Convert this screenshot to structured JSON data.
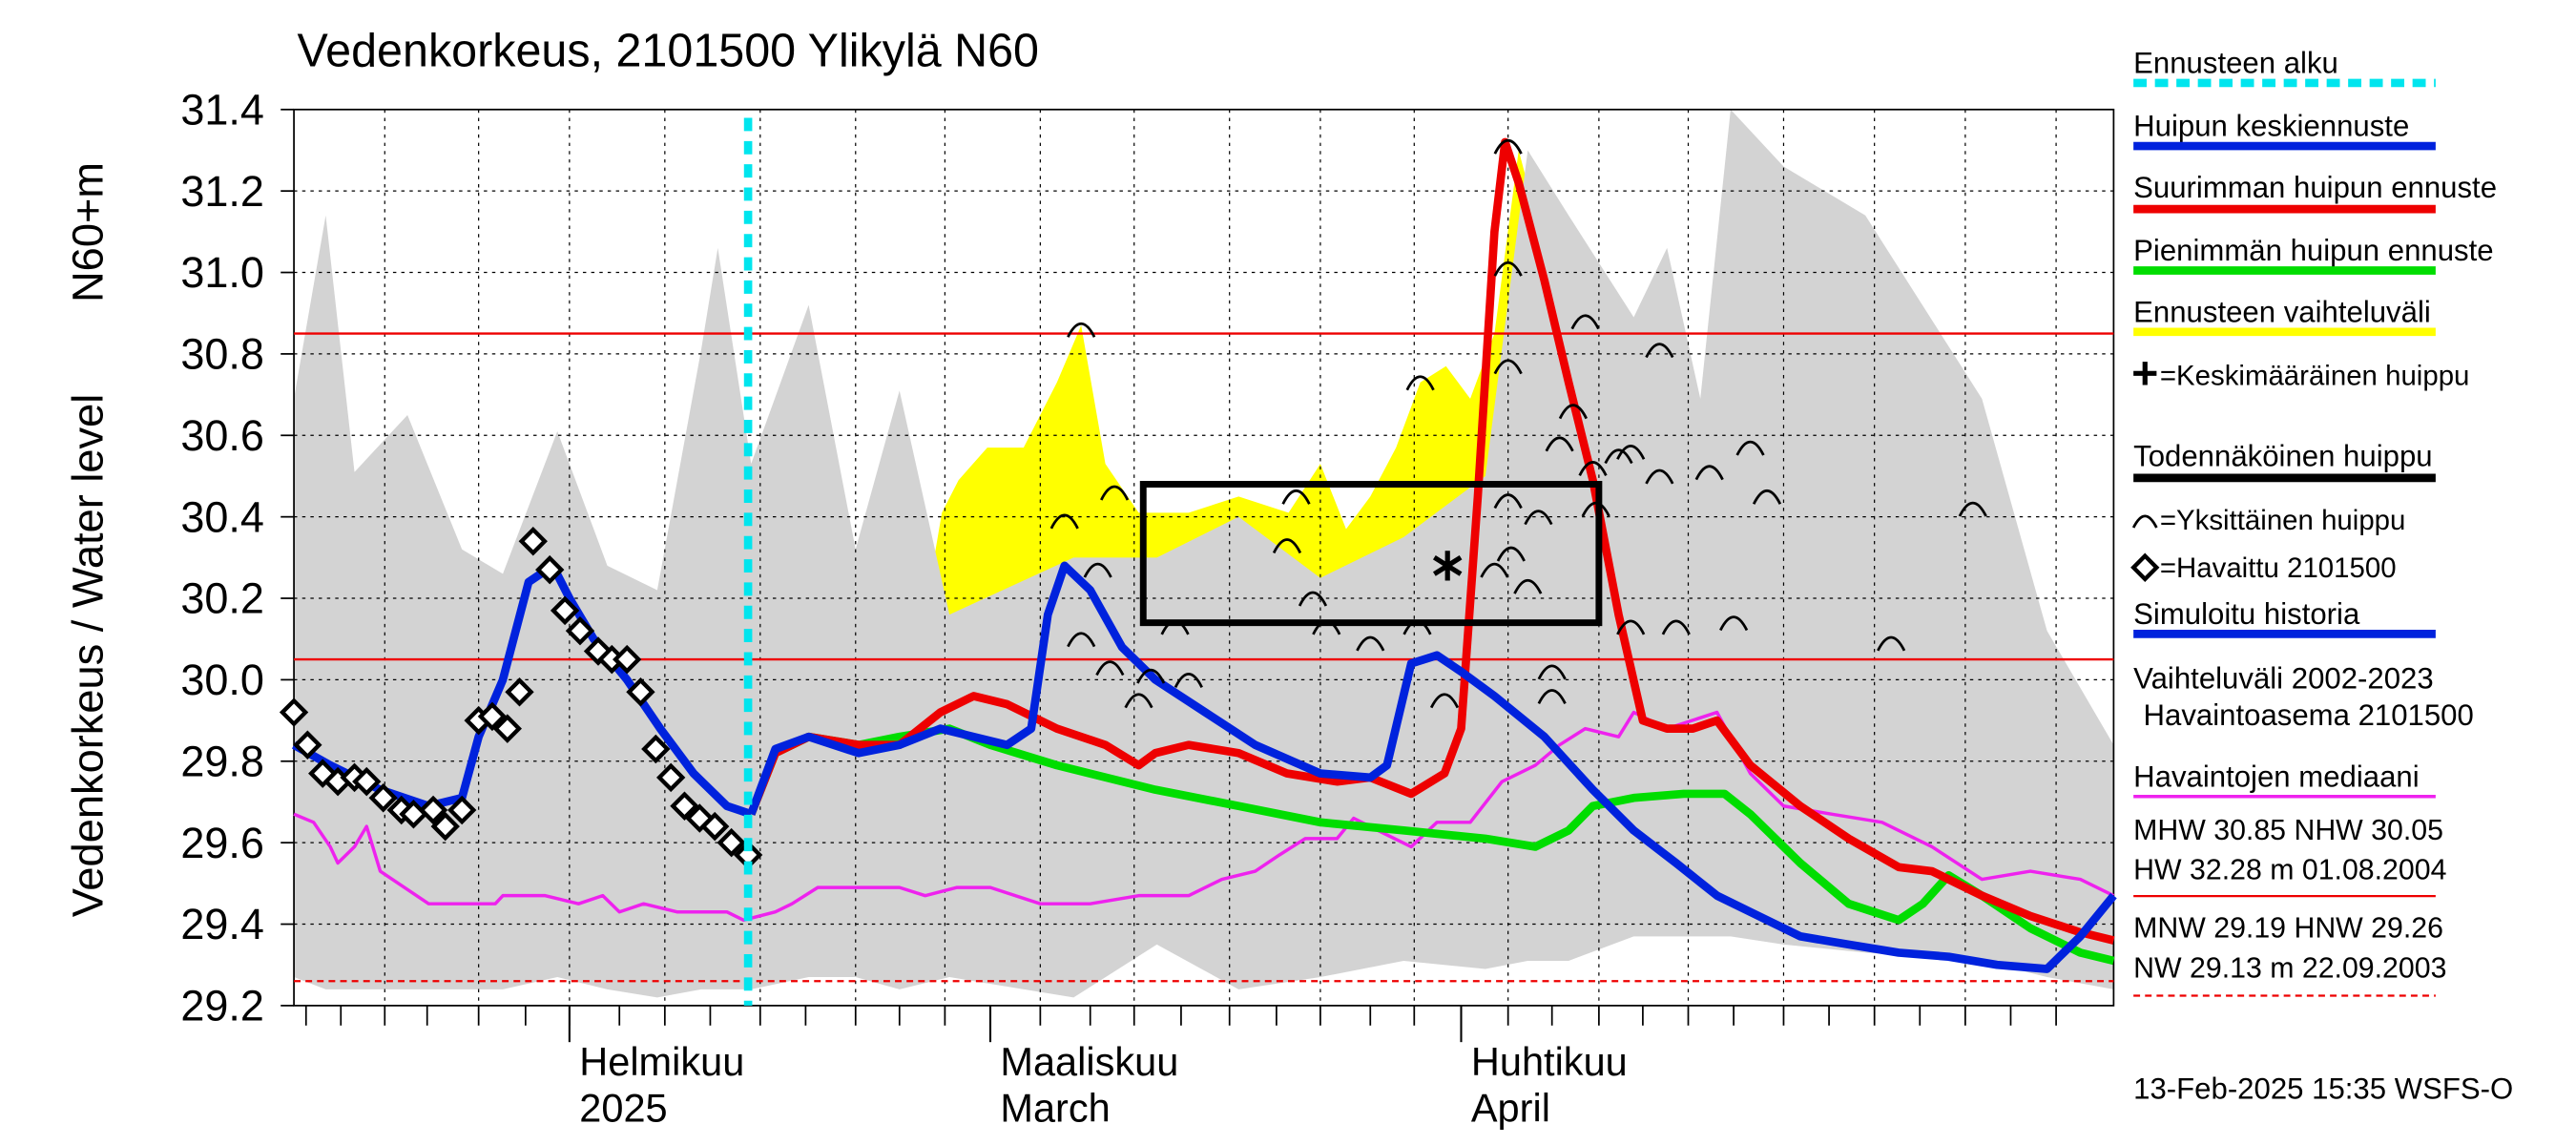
{
  "chart_data": {
    "type": "line",
    "title": "Vedenkorkeus, 2101500 Ylikylä N60",
    "ylabel": "Vedenkorkeus / Water level",
    "ylabel2": "N60+m",
    "footer": "13-Feb-2025 15:35 WSFS-O",
    "grid": true,
    "xlim": [
      0,
      120.2
    ],
    "xticks": [
      {
        "value": 18.2,
        "label": "Helmikuu"
      },
      {
        "value": 46.0,
        "label": "Maaliskuu"
      },
      {
        "value": 77.1,
        "label": "Huhtikuu"
      }
    ],
    "xticklabels2": [
      "2025",
      "March",
      "April"
    ],
    "xminorticks": [
      0.8,
      3.1,
      6,
      8.8,
      12.2,
      15.3,
      18.2,
      21.5,
      24.5,
      27.5,
      30.8,
      33.8,
      37.1,
      40,
      43,
      46,
      49.3,
      52.6,
      55.5,
      58.6,
      61.8,
      64.9,
      67.8,
      71.1,
      74,
      77.1,
      80.2,
      83.1,
      86.2,
      89.1,
      92.1,
      95.1,
      98.4,
      101.4,
      104.4,
      107.4,
      110.4,
      113.4,
      116.4
    ],
    "ylim": [
      29.2,
      31.4
    ],
    "yticks": [
      29.2,
      29.4,
      29.6,
      29.8,
      {
        "value": 30,
        "label": "30.0"
      },
      30.2,
      30.4,
      30.6,
      30.8,
      {
        "value": 31,
        "label": "31.0"
      },
      31.2,
      31.4
    ],
    "reference_lines": [
      {
        "value": 30.85,
        "style": "solid",
        "color": "#ee0000"
      },
      {
        "value": 30.05,
        "style": "solid",
        "color": "#ee0000"
      },
      {
        "value": 29.26,
        "style": "dashed",
        "color": "#ee0000"
      }
    ],
    "stats": [
      "MHW  30.85 NHW  30.05",
      "HW  32.28 m 01.08.2004",
      "MNW  29.19 HNW  29.26",
      "NW  29.13 m 22.09.2003"
    ],
    "series": [
      {
        "name": "Ennusteen alku",
        "kind": "vline",
        "color": "#00e5ee",
        "x": 30.0
      },
      {
        "name": "Huipun keskiennuste",
        "kind": "line",
        "color": "#0022dd",
        "x": [
          30.2,
          31.8,
          34.0,
          37.3,
          40.0,
          42.7,
          44.9,
          47.1,
          48.7,
          49.8,
          50.9,
          52.6,
          54.7,
          56.9,
          60.2,
          63.5,
          67.8,
          71.1,
          72.2,
          73.8,
          75.5,
          77.1,
          79.3,
          82.6,
          85.8,
          88.5,
          91.3,
          94.0,
          96.2,
          99.5,
          102.7,
          106.0,
          109.3,
          112.5,
          115.8,
          118.0,
          120.2
        ],
        "values": [
          29.67,
          29.83,
          29.86,
          29.82,
          29.84,
          29.88,
          29.86,
          29.84,
          29.88,
          30.16,
          30.28,
          30.22,
          30.08,
          30.0,
          29.92,
          29.84,
          29.77,
          29.76,
          29.79,
          30.04,
          30.06,
          30.02,
          29.96,
          29.86,
          29.73,
          29.63,
          29.55,
          29.47,
          29.43,
          29.37,
          29.35,
          29.33,
          29.32,
          29.3,
          29.29,
          29.37,
          29.47
        ]
      },
      {
        "name": "Suurimman huipun ennuste",
        "kind": "line",
        "color": "#ee0000",
        "x": [
          30.2,
          31.8,
          34.0,
          37.3,
          40.0,
          42.7,
          44.9,
          47.1,
          50.4,
          53.6,
          55.8,
          56.9,
          59.1,
          62.4,
          65.6,
          68.9,
          71.1,
          73.8,
          76.0,
          77.1,
          78.2,
          79.3,
          80.0,
          80.9,
          82.6,
          84.2,
          85.8,
          87.5,
          89.1,
          90.7,
          92.4,
          94.0,
          96.2,
          99.5,
          102.7,
          106.0,
          108.2,
          111.5,
          114.7,
          118.0,
          120.2
        ],
        "values": [
          29.67,
          29.82,
          29.86,
          29.84,
          29.84,
          29.92,
          29.96,
          29.94,
          29.88,
          29.84,
          29.79,
          29.82,
          29.84,
          29.82,
          29.77,
          29.75,
          29.76,
          29.72,
          29.77,
          29.88,
          30.45,
          31.1,
          31.32,
          31.22,
          30.98,
          30.73,
          30.49,
          30.16,
          29.9,
          29.88,
          29.88,
          29.9,
          29.79,
          29.69,
          29.61,
          29.54,
          29.53,
          29.47,
          29.42,
          29.38,
          29.36
        ]
      },
      {
        "name": "Pienimmän huipun ennuste",
        "kind": "line",
        "color": "#00dd00",
        "x": [
          30.2,
          31.8,
          34.0,
          37.3,
          40.0,
          43.3,
          46.0,
          50.4,
          56.9,
          62.4,
          67.8,
          73.3,
          78.7,
          82.0,
          84.2,
          85.8,
          88.5,
          91.8,
          94.5,
          96.2,
          99.5,
          102.7,
          106.0,
          107.6,
          109.3,
          111.5,
          114.7,
          118.0,
          120.2
        ],
        "values": [
          29.67,
          29.82,
          29.86,
          29.84,
          29.86,
          29.88,
          29.84,
          29.79,
          29.73,
          29.69,
          29.65,
          29.63,
          29.61,
          29.59,
          29.63,
          29.69,
          29.71,
          29.72,
          29.72,
          29.67,
          29.55,
          29.45,
          29.41,
          29.45,
          29.52,
          29.47,
          29.39,
          29.33,
          29.31
        ]
      },
      {
        "name": "Ennusteen vaihteluväli",
        "kind": "band",
        "color": "#ffff00",
        "x": [
          38.4,
          41.1,
          42.8,
          43.9,
          45.8,
          48.2,
          50.4,
          52,
          53.6,
          55.8,
          59.1,
          62.4,
          65.7,
          67.8,
          69.5,
          71.1,
          72.8,
          74.4,
          76.1,
          77.7,
          79.3,
          80.9,
          82.6,
          84.7,
          86.9,
          89.6,
          92.9,
          96.2,
          100.5,
          104.9,
          108.2,
          110.9,
          113.1,
          115.8,
          120.2
        ],
        "upper": [
          29.87,
          30.04,
          30.41,
          30.49,
          30.57,
          30.57,
          30.73,
          30.87,
          30.53,
          30.41,
          30.41,
          30.45,
          30.41,
          30.53,
          30.37,
          30.45,
          30.57,
          30.73,
          30.77,
          30.69,
          30.85,
          31.3,
          31.06,
          30.98,
          30.85,
          30.79,
          30.45,
          30.32,
          30.24,
          30.2,
          30.16,
          30.45,
          30.24,
          30.04,
          29.79
        ],
        "lower": [
          29.86,
          29.79,
          29.77,
          29.76,
          29.75,
          29.74,
          29.73,
          29.72,
          29.71,
          29.7,
          29.69,
          29.67,
          29.67,
          29.67,
          29.66,
          29.66,
          29.65,
          29.64,
          29.63,
          29.62,
          29.6,
          29.58,
          29.56,
          29.54,
          29.52,
          29.51,
          29.49,
          29.46,
          29.43,
          29.39,
          29.36,
          29.34,
          29.33,
          29.32,
          29.31
        ]
      },
      {
        "name": "=Keskimääräinen huippu",
        "kind": "star",
        "color": "#000000",
        "x": [
          76.2
        ],
        "values": [
          30.28
        ]
      },
      {
        "name": "Todennäköinen huippu",
        "kind": "box",
        "color": "#000000",
        "x": [
          56.1,
          86.2
        ],
        "values": [
          30.48,
          30.14
        ]
      },
      {
        "name": "=Yksittäinen huippu",
        "kind": "arcs",
        "color": "#000000",
        "x": [
          52.0,
          50.9,
          54.2,
          53.1,
          52.0,
          53.9,
          55.8,
          56.6,
          59.1,
          58.2,
          66.2,
          65.6,
          67.3,
          68.2,
          71.1,
          74.4,
          74.2,
          76.0,
          79.3,
          80.2,
          80.2,
          80.2,
          80.2,
          80.4,
          81.5,
          82.2,
          83.1,
          83.1,
          83.6,
          84.5,
          85.3,
          86.0,
          85.8,
          87.5,
          88.3,
          90.2,
          90.2,
          93.5,
          96.2,
          97.3,
          95.1,
          88.3,
          91.3,
          105.5,
          110.9
        ],
        "values": [
          30.87,
          30.4,
          30.47,
          30.28,
          30.11,
          30.04,
          29.96,
          30.02,
          30.01,
          30.14,
          30.46,
          30.34,
          30.21,
          30.14,
          30.1,
          30.74,
          30.14,
          29.96,
          30.28,
          31.32,
          31.02,
          30.78,
          30.45,
          30.32,
          30.24,
          30.41,
          30.03,
          29.97,
          30.59,
          30.67,
          30.89,
          30.43,
          30.53,
          30.56,
          30.57,
          30.82,
          30.51,
          30.52,
          30.58,
          30.46,
          30.15,
          30.14,
          30.14,
          30.1,
          30.43
        ]
      },
      {
        "name": "=Havaittu 2101500",
        "kind": "diamonds",
        "color": "#000000",
        "x": [
          0,
          0.9,
          1.9,
          2.9,
          4.0,
          4.8,
          5.9,
          7.1,
          7.9,
          9.2,
          10.0,
          11.1,
          12.2,
          13.1,
          14.1,
          14.9,
          15.8,
          16.9,
          17.9,
          18.9,
          20.1,
          21.0,
          22.0,
          22.9,
          23.9,
          24.9,
          25.8,
          26.8,
          27.8,
          28.9,
          30.0
        ],
        "values": [
          29.92,
          29.84,
          29.77,
          29.75,
          29.76,
          29.75,
          29.71,
          29.68,
          29.67,
          29.68,
          29.64,
          29.68,
          29.9,
          29.91,
          29.88,
          29.97,
          30.34,
          30.27,
          30.17,
          30.12,
          30.07,
          30.05,
          30.05,
          29.97,
          29.83,
          29.76,
          29.69,
          29.66,
          29.64,
          29.6,
          29.57
        ]
      },
      {
        "name": "Simuloitu historia",
        "kind": "line",
        "color": "#0022dd",
        "x": [
          0,
          2.4,
          5.7,
          8.9,
          11.1,
          12.2,
          13.8,
          15.5,
          17.1,
          18.2,
          19.8,
          22.0,
          24.2,
          26.4,
          28.6,
          30.2
        ],
        "values": [
          29.84,
          29.79,
          29.73,
          29.69,
          29.71,
          29.86,
          30.0,
          30.24,
          30.28,
          30.2,
          30.1,
          30.0,
          29.88,
          29.77,
          29.69,
          29.67
        ]
      },
      {
        "name": "Vaihteluväli 2002-2023",
        "subname": "Havaintoasema 2101500",
        "kind": "band",
        "color": "#d3d3d3",
        "x": [
          0,
          2.1,
          4,
          7.5,
          11.1,
          13.8,
          17.4,
          20.7,
          24,
          26.9,
          28,
          30.2,
          34,
          37.1,
          40,
          43.3,
          51.5,
          57,
          62.4,
          67.8,
          73.3,
          78.7,
          81.5,
          84.2,
          88.5,
          90.7,
          92.9,
          94.9,
          98.4,
          103.8,
          111.5,
          115.8,
          120.2
        ],
        "upper": [
          30.69,
          31.14,
          30.51,
          30.65,
          30.32,
          30.26,
          30.61,
          30.28,
          30.22,
          30.81,
          31.06,
          30.53,
          30.92,
          30.32,
          30.71,
          30.16,
          30.3,
          30.3,
          30.4,
          30.25,
          30.35,
          30.5,
          31.3,
          31.14,
          30.89,
          31.06,
          30.69,
          31.4,
          31.26,
          31.14,
          30.69,
          30.12,
          29.84
        ],
        "lower": [
          29.27,
          29.24,
          29.24,
          29.24,
          29.24,
          29.24,
          29.27,
          29.24,
          29.22,
          29.24,
          29.24,
          29.24,
          29.27,
          29.27,
          29.24,
          29.27,
          29.22,
          29.35,
          29.24,
          29.27,
          29.31,
          29.29,
          29.31,
          29.31,
          29.37,
          29.37,
          29.37,
          29.37,
          29.35,
          29.33,
          29.31,
          29.27,
          29.24
        ]
      },
      {
        "name": "Havaintojen mediaani",
        "kind": "line",
        "color": "#ee22ee",
        "x": [
          0,
          1.3,
          2.4,
          2.9,
          4.0,
          4.8,
          5.7,
          8.9,
          13.3,
          13.8,
          16.6,
          18.8,
          20.4,
          21.5,
          23.1,
          25.3,
          28.6,
          29.7,
          31.8,
          32.9,
          34.6,
          37.3,
          40.0,
          41.7,
          43.8,
          46.0,
          49.3,
          52.6,
          55.8,
          59.1,
          61.3,
          63.5,
          65.1,
          66.8,
          68.9,
          70.0,
          71.6,
          73.8,
          75.5,
          77.7,
          79.8,
          82.0,
          83.6,
          85.3,
          87.5,
          88.5,
          90.7,
          94.0,
          96.2,
          98.4,
          101.6,
          104.9,
          108.2,
          111.5,
          114.7,
          118.0,
          120.2
        ],
        "values": [
          29.67,
          29.65,
          29.59,
          29.55,
          29.59,
          29.64,
          29.53,
          29.45,
          29.45,
          29.47,
          29.47,
          29.45,
          29.47,
          29.43,
          29.45,
          29.43,
          29.43,
          29.41,
          29.43,
          29.45,
          29.49,
          29.49,
          29.49,
          29.47,
          29.49,
          29.49,
          29.45,
          29.45,
          29.47,
          29.47,
          29.51,
          29.53,
          29.57,
          29.61,
          29.61,
          29.66,
          29.63,
          29.59,
          29.65,
          29.65,
          29.75,
          29.79,
          29.84,
          29.88,
          29.86,
          29.92,
          29.88,
          29.92,
          29.77,
          29.69,
          29.67,
          29.65,
          29.59,
          29.51,
          29.53,
          29.51,
          29.47
        ]
      }
    ]
  }
}
